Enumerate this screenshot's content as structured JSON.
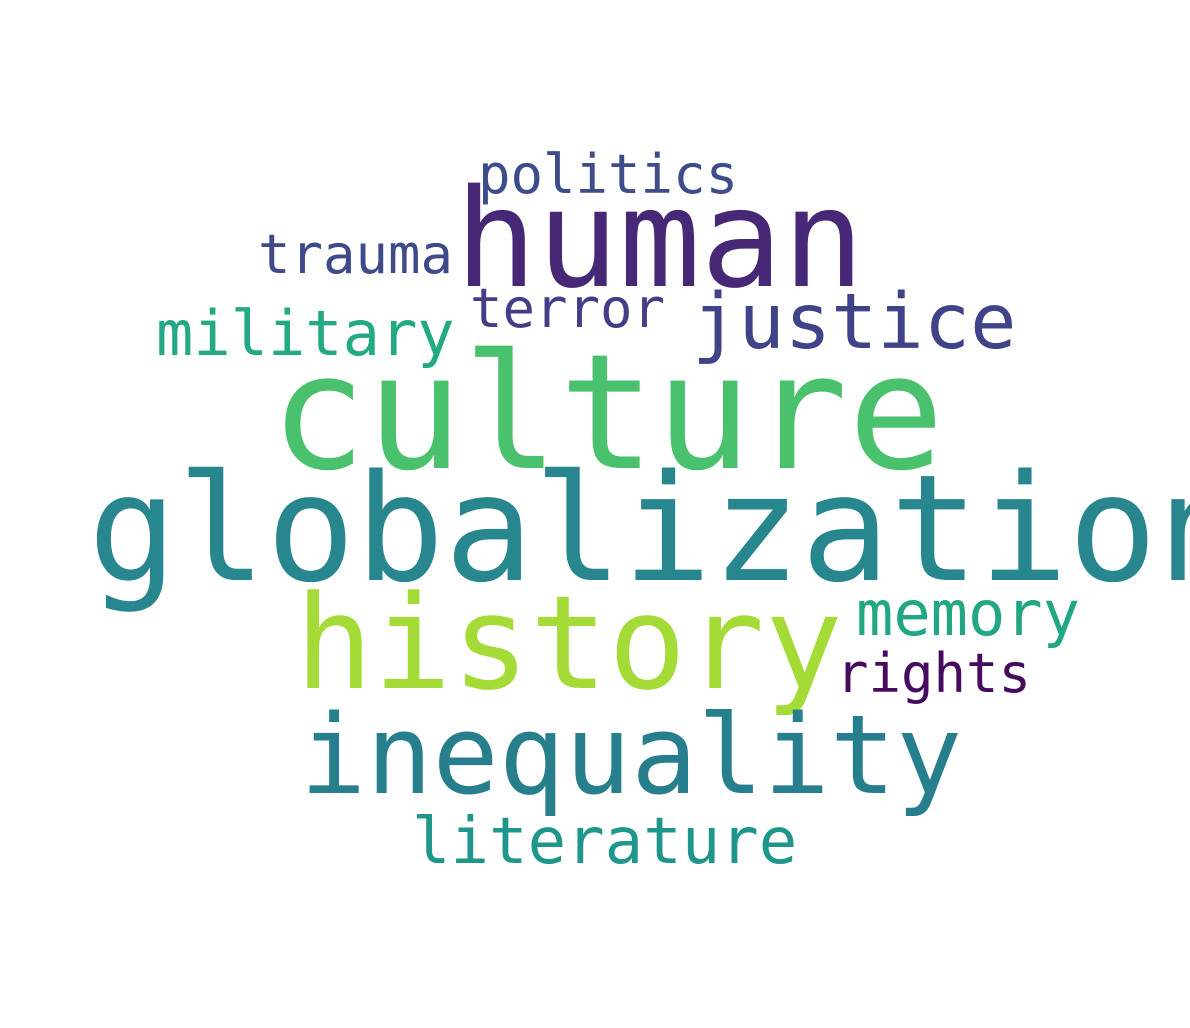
{
  "words": {
    "politics": {
      "text": "politics",
      "color": "#3e4c8a"
    },
    "human": {
      "text": "human",
      "color": "#472877"
    },
    "trauma": {
      "text": "trauma",
      "color": "#3f4a8a"
    },
    "terror": {
      "text": "terror",
      "color": "#433e85"
    },
    "justice": {
      "text": "justice",
      "color": "#404387"
    },
    "military": {
      "text": "military",
      "color": "#23a983"
    },
    "culture": {
      "text": "culture",
      "color": "#4ac16d"
    },
    "globalization": {
      "text": "globalization",
      "color": "#28868e"
    },
    "history": {
      "text": "history",
      "color": "#a5db36"
    },
    "memory": {
      "text": "memory",
      "color": "#22a785"
    },
    "rights": {
      "text": "rights",
      "color": "#460b5e"
    },
    "inequality": {
      "text": "inequality",
      "color": "#277f8e"
    },
    "literature": {
      "text": "literature",
      "color": "#1f968b"
    }
  }
}
